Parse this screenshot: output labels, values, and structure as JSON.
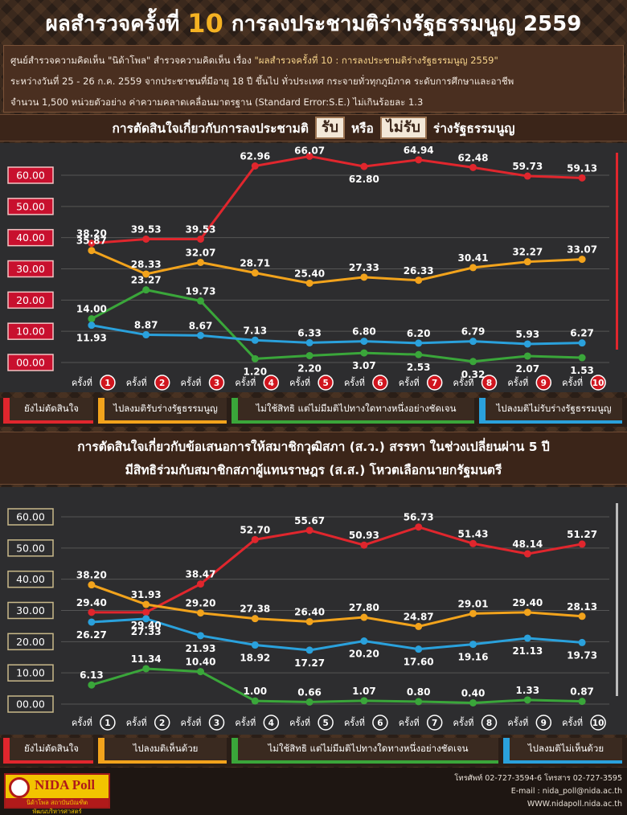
{
  "header": {
    "title_pre": "ผลสำรวจครั้งที่",
    "title_num": "10",
    "title_post": "การลงประชามติร่างรัฐธรรมนูญ 2559"
  },
  "info": {
    "line1_a": "ศูนย์สำรวจความคิดเห็น \"นิด้าโพล\" สำรวจความคิดเห็น เรื่อง ",
    "line1_b": "\"ผลสำรวจครั้งที่ 10 : การลงประชามติร่างรัฐธรรมนูญ 2559\"",
    "line2": "ระหว่างวันที่  25 - 26  ก.ค. 2559 จากประชาชนที่มีอายุ 18 ปี ขึ้นไป ทั่วประเทศ กระจายทั่วทุกภูมิภาค ระดับการศึกษาและอาชีพ",
    "line3": "จำนวน 1,500 หน่วยตัวอย่าง ค่าความคลาดเคลื่อนมาตรฐาน (Standard Error:S.E.) ไม่เกินร้อยละ 1.3"
  },
  "section1": {
    "pre": "การตัดสินใจเกี่ยวกับการลงประชามติ",
    "box1": "รับ",
    "mid": "หรือ",
    "box2": "ไม่รับ",
    "post": "ร่างรัฐธรรมนูญ"
  },
  "section2": {
    "line1": "การตัดสินใจเกี่ยวกับข้อเสนอการให้สมาชิกวุฒิสภา (ส.ว.) สรรหา ในช่วงเปลี่ยนผ่าน 5 ปี",
    "line2": "มีสิทธิร่วมกับสมาชิกสภาผู้แทนราษฎร (ส.ส.) โหวตเลือกนายกรัฐมนตรี"
  },
  "legend1": [
    "ยังไม่ตัดสินใจ",
    "ไปลงมติรับร่างรัฐธรรมนูญ",
    "ไม่ใช้สิทธิ แต่ไม่มีมติไปทางใดทางหนึ่งอย่างชัดเจน",
    "ไปลงมติไม่รับร่างรัฐธรรมนูญ"
  ],
  "legend2": [
    "ยังไม่ตัดสินใจ",
    "ไปลงมติเห็นด้วย",
    "ไม่ใช้สิทธิ แต่ไม่มีมติไปทางใดทางหนึ่งอย่างชัดเจน",
    "ไปลงมติไม่เห็นด้วย"
  ],
  "footer": {
    "logo_name": "NIDA Poll",
    "logo_sub": "นิด้าโพล สถาบันบัณฑิตพัฒนบริหารศาสตร์",
    "phone": "โทรศัพท์ 02-727-3594-6 โทรสาร 02-727-3595",
    "email": "E-mail : nida_poll@nida.ac.th",
    "web": "WWW.nidapoll.nida.ac.th"
  },
  "colors": {
    "red": "#e0262d",
    "orange": "#f2a31c",
    "green": "#3aa63a",
    "blue": "#2aa1dc"
  },
  "chart_data": [
    {
      "type": "line",
      "x_prefix": "ครั้งที่",
      "categories": [
        "1",
        "2",
        "3",
        "4",
        "5",
        "6",
        "7",
        "8",
        "9",
        "10"
      ],
      "ylim": [
        0,
        60
      ],
      "yticks": [
        "00.00",
        "10.00",
        "20.00",
        "30.00",
        "40.00",
        "50.00",
        "60.00"
      ],
      "ytick_values": [
        0,
        10,
        20,
        30,
        40,
        50,
        60
      ],
      "series": [
        {
          "name": "ยังไม่ตัดสินใจ",
          "color": "#e0262d",
          "values": [
            38.2,
            39.53,
            39.53,
            62.96,
            66.07,
            62.8,
            64.94,
            62.48,
            59.73,
            59.13
          ]
        },
        {
          "name": "ไปลงมติรับร่างรัฐธรรมนูญ",
          "color": "#f2a31c",
          "values": [
            35.87,
            28.33,
            32.07,
            28.71,
            25.4,
            27.33,
            26.33,
            30.41,
            32.27,
            33.07
          ]
        },
        {
          "name": "ไม่ใช้สิทธิ แต่ไม่มีมติไปทางใดทางหนึ่งอย่างชัดเจน",
          "color": "#3aa63a",
          "values": [
            14.0,
            23.27,
            19.73,
            1.2,
            2.2,
            3.07,
            2.53,
            0.32,
            2.07,
            1.53
          ]
        },
        {
          "name": "ไปลงมติไม่รับร่างรัฐธรรมนูญ",
          "color": "#2aa1dc",
          "values": [
            11.93,
            8.87,
            8.67,
            7.13,
            6.33,
            6.8,
            6.2,
            6.79,
            5.93,
            6.27
          ]
        }
      ],
      "labels": [
        [
          "38.20",
          "39.53",
          "39.53",
          "62.96",
          "66.07",
          "62.80",
          "64.94",
          "62.48",
          "59.73",
          "59.13"
        ],
        [
          "35.87",
          "28.33",
          "32.07",
          "28.71",
          "25.40",
          "27.33",
          "26.33",
          "30.41",
          "32.27",
          "33.07"
        ],
        [
          "14.00",
          "23.27",
          "19.73",
          "1.20",
          "2.20",
          "3.07",
          "2.53",
          "0.32",
          "2.07",
          "1.53"
        ],
        [
          "11.93",
          "8.87",
          "8.67",
          "7.13",
          "6.33",
          "6.80",
          "6.20",
          "6.79",
          "5.93",
          "6.27"
        ]
      ]
    },
    {
      "type": "line",
      "x_prefix": "ครั้งที่",
      "categories": [
        "1",
        "2",
        "3",
        "4",
        "5",
        "6",
        "7",
        "8",
        "9",
        "10"
      ],
      "ylim": [
        0,
        60
      ],
      "yticks": [
        "00.00",
        "10.00",
        "20.00",
        "30.00",
        "40.00",
        "50.00",
        "60.00"
      ],
      "ytick_values": [
        0,
        10,
        20,
        30,
        40,
        50,
        60
      ],
      "series": [
        {
          "name": "ยังไม่ตัดสินใจ",
          "color": "#e0262d",
          "values": [
            29.4,
            29.4,
            38.47,
            52.7,
            55.67,
            50.93,
            56.73,
            51.43,
            48.14,
            51.27
          ]
        },
        {
          "name": "ไปลงมติเห็นด้วย",
          "color": "#f2a31c",
          "values": [
            38.2,
            31.93,
            29.2,
            27.38,
            26.4,
            27.8,
            24.87,
            29.01,
            29.4,
            28.13
          ]
        },
        {
          "name": "ไม่ใช้สิทธิ แต่ไม่มีมติไปทางใดทางหนึ่งอย่างชัดเจน",
          "color": "#3aa63a",
          "values": [
            6.13,
            11.34,
            10.4,
            1.0,
            0.66,
            1.07,
            0.8,
            0.4,
            1.33,
            0.87
          ]
        },
        {
          "name": "ไปลงมติไม่เห็นด้วย",
          "color": "#2aa1dc",
          "values": [
            26.27,
            27.33,
            21.93,
            18.92,
            17.27,
            20.2,
            17.6,
            19.16,
            21.13,
            19.73
          ]
        }
      ],
      "labels": [
        [
          "29.40",
          "29.40",
          "38.47",
          "52.70",
          "55.67",
          "50.93",
          "56.73",
          "51.43",
          "48.14",
          "51.27"
        ],
        [
          "38.20",
          "31.93",
          "29.20",
          "27.38",
          "26.40",
          "27.80",
          "24.87",
          "29.01",
          "29.40",
          "28.13"
        ],
        [
          "6.13",
          "11.34",
          "10.40",
          "1.00",
          "0.66",
          "1.07",
          "0.80",
          "0.40",
          "1.33",
          "0.87"
        ],
        [
          "26.27",
          "27.33",
          "21.93",
          "18.92",
          "17.27",
          "20.20",
          "17.60",
          "19.16",
          "21.13",
          "19.73"
        ]
      ]
    }
  ]
}
